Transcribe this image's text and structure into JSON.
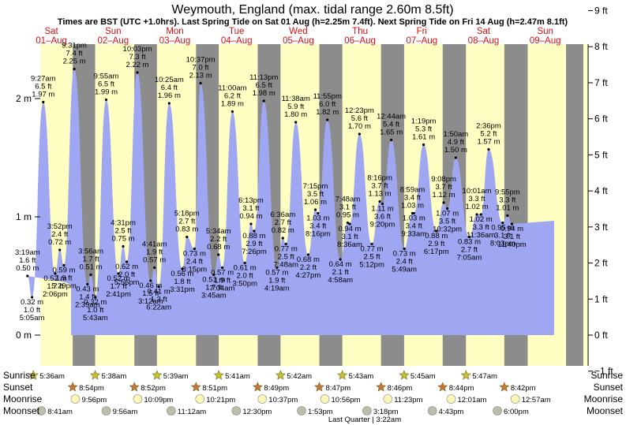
{
  "title": "Weymouth, England (max. tidal range 2.60m 8.5ft)",
  "subtitle": "Times are BST (UTC +1.0hrs). Last Spring Tide on Sat 01 Aug (h=2.25m 7.4ft). Next Spring Tide on Fri 14 Aug (h=2.47m 8.1ft)",
  "chart_data": {
    "type": "area",
    "title": "Weymouth, England (max. tidal range 2.60m 8.5ft)",
    "days": [
      {
        "dow": "Sat",
        "date": "01–Aug"
      },
      {
        "dow": "Sun",
        "date": "02–Aug"
      },
      {
        "dow": "Mon",
        "date": "03–Aug"
      },
      {
        "dow": "Tue",
        "date": "04–Aug"
      },
      {
        "dow": "Wed",
        "date": "05–Aug"
      },
      {
        "dow": "Thu",
        "date": "06–Aug"
      },
      {
        "dow": "Fri",
        "date": "07–Aug"
      },
      {
        "dow": "Sat",
        "date": "08–Aug"
      },
      {
        "dow": "Sun",
        "date": "09–Aug"
      }
    ],
    "ylim_m": [
      -0.3,
      2.8
    ],
    "ylim_ft": [
      -1,
      9
    ],
    "y_left_ticks": [
      {
        "v": 0,
        "label": "0 m"
      },
      {
        "v": 1,
        "label": "1 m"
      },
      {
        "v": 2,
        "label": "2 m"
      }
    ],
    "y_right_ticks": [
      {
        "v": -1,
        "label": "−1 ft"
      },
      {
        "v": 0,
        "label": "0 ft"
      },
      {
        "v": 1,
        "label": "1 ft"
      },
      {
        "v": 2,
        "label": "2 ft"
      },
      {
        "v": 3,
        "label": "3 ft"
      },
      {
        "v": 4,
        "label": "4 ft"
      },
      {
        "v": 5,
        "label": "5 ft"
      },
      {
        "v": 6,
        "label": "6 ft"
      },
      {
        "v": 7,
        "label": "7 ft"
      },
      {
        "v": 8,
        "label": "8 ft"
      },
      {
        "v": 9,
        "label": "9 ft"
      }
    ],
    "tides": [
      {
        "day": 0,
        "time": "3:19 am",
        "t": "3:19am",
        "m": 0.5,
        "ft": "1.6 ft",
        "mlabel": "0.50 m",
        "type": "high"
      },
      {
        "day": 0,
        "time": "5:05 am",
        "t": "5:05am",
        "m": 0.32,
        "ft": "1.0 ft",
        "mlabel": "0.32 m",
        "type": "low"
      },
      {
        "day": 0,
        "time": "9:27 am",
        "t": "9:27am",
        "m": 1.97,
        "ft": "6.5 ft",
        "mlabel": "1.97 m",
        "type": "high"
      },
      {
        "day": 0,
        "time": "2:06 pm",
        "t": "2:06pm",
        "m": 0.52,
        "ft": "1.7 ft",
        "mlabel": "0.52 m",
        "type": "low"
      },
      {
        "day": 0,
        "time": "3:52 pm",
        "t": "3:52pm",
        "m": 0.72,
        "ft": "2.4 ft",
        "mlabel": "0.72 m",
        "type": "high"
      },
      {
        "day": 0,
        "time": "5:29 pm",
        "t": "5:29pm",
        "m": 0.59,
        "ft": "1.9 ft",
        "mlabel": "0.59 m",
        "type": "low"
      },
      {
        "day": 0,
        "time": "9:31 pm",
        "t": "9:31pm",
        "m": 2.25,
        "ft": "7.4 ft",
        "mlabel": "2.25 m",
        "type": "high"
      },
      {
        "day": 1,
        "time": "2:39 am",
        "t": "2:39am",
        "m": 0.43,
        "ft": "1.4 ft",
        "mlabel": "0.43 m",
        "type": "low"
      },
      {
        "day": 1,
        "time": "3:56 am",
        "t": "3:56am",
        "m": 0.51,
        "ft": "1.7 ft",
        "mlabel": "0.51 m",
        "type": "high"
      },
      {
        "day": 1,
        "time": "5:43 am",
        "t": "5:43am",
        "m": 0.32,
        "ft": "1.0 ft",
        "mlabel": "0.32 m",
        "type": "low"
      },
      {
        "day": 1,
        "time": "9:55 am",
        "t": "9:55am",
        "m": 1.99,
        "ft": "6.5 ft",
        "mlabel": "1.99 m",
        "type": "high"
      },
      {
        "day": 1,
        "time": "2:41 pm",
        "t": "2:41pm",
        "m": 0.52,
        "ft": "1.7 ft",
        "mlabel": "0.52 m",
        "type": "low"
      },
      {
        "day": 1,
        "time": "4:31 pm",
        "t": "4:31pm",
        "m": 0.75,
        "ft": "2.5 ft",
        "mlabel": "0.75 m",
        "type": "high"
      },
      {
        "day": 1,
        "time": "5:56 pm",
        "t": "5:56pm",
        "m": 0.62,
        "ft": "2.0 ft",
        "mlabel": "0.62 m",
        "type": "low"
      },
      {
        "day": 1,
        "time": "10:03 pm",
        "t": "10:03pm",
        "m": 2.22,
        "ft": "7.3 ft",
        "mlabel": "2.22 m",
        "type": "high"
      },
      {
        "day": 2,
        "time": "3:12 am",
        "t": "3:12am",
        "m": 0.46,
        "ft": "1.5 ft",
        "mlabel": "0.46 m",
        "type": "low"
      },
      {
        "day": 2,
        "time": "4:41 am",
        "t": "4:41am",
        "m": 0.57,
        "ft": "1.9 ft",
        "mlabel": "0.57 m",
        "type": "high"
      },
      {
        "day": 2,
        "time": "6:22 am",
        "t": "6:22am",
        "m": 0.41,
        "ft": "1.3 ft",
        "mlabel": "0.41 m",
        "type": "low"
      },
      {
        "day": 2,
        "time": "10:25 am",
        "t": "10:25am",
        "m": 1.96,
        "ft": "6.4 ft",
        "mlabel": "1.96 m",
        "type": "high"
      },
      {
        "day": 2,
        "time": "3:31 pm",
        "t": "3:31pm",
        "m": 0.56,
        "ft": "1.8 ft",
        "mlabel": "0.56 m",
        "type": "low"
      },
      {
        "day": 2,
        "time": "5:18 pm",
        "t": "5:18pm",
        "m": 0.83,
        "ft": "2.7 ft",
        "mlabel": "0.83 m",
        "type": "high"
      },
      {
        "day": 2,
        "time": "8:15 pm",
        "t": "8:15pm",
        "m": 0.73,
        "ft": "2.4 ft",
        "mlabel": "0.73 m",
        "type": "low"
      },
      {
        "day": 2,
        "time": "10:37 pm",
        "t": "10:37pm",
        "m": 2.13,
        "ft": "7.0 ft",
        "mlabel": "2.13 m",
        "type": "high"
      },
      {
        "day": 3,
        "time": "3:45 am",
        "t": "3:45am",
        "m": 0.51,
        "ft": "1.7 ft",
        "mlabel": "0.51 m",
        "type": "low"
      },
      {
        "day": 3,
        "time": "5:34 am",
        "t": "5:34am",
        "m": 0.68,
        "ft": "2.2 ft",
        "mlabel": "0.68 m",
        "type": "high"
      },
      {
        "day": 3,
        "time": "7:04 am",
        "t": "7:04am",
        "m": 0.57,
        "ft": "1.9 ft",
        "mlabel": "0.57 m",
        "type": "low"
      },
      {
        "day": 3,
        "time": "11:00 am",
        "t": "11:00am",
        "m": 1.89,
        "ft": "6.2 ft",
        "mlabel": "1.89 m",
        "type": "high"
      },
      {
        "day": 3,
        "time": "3:50 pm",
        "t": "3:50pm",
        "m": 0.61,
        "ft": "2.0 ft",
        "mlabel": "0.61 m",
        "type": "low"
      },
      {
        "day": 3,
        "time": "6:13 pm",
        "t": "6:13pm",
        "m": 0.94,
        "ft": "3.1 ft",
        "mlabel": "0.94 m",
        "type": "high"
      },
      {
        "day": 3,
        "time": "7:26 pm",
        "t": "7:26pm",
        "m": 0.88,
        "ft": "2.9 ft",
        "mlabel": "0.88 m",
        "type": "low"
      },
      {
        "day": 3,
        "time": "11:13 pm",
        "t": "11:13pm",
        "m": 1.98,
        "ft": "6.5 ft",
        "mlabel": "1.98 m",
        "type": "high"
      },
      {
        "day": 4,
        "time": "4:19 am",
        "t": "4:19am",
        "m": 0.57,
        "ft": "1.9 ft",
        "mlabel": "0.57 m",
        "type": "low"
      },
      {
        "day": 4,
        "time": "6:36 am",
        "t": "6:36am",
        "m": 0.82,
        "ft": "2.7 ft",
        "mlabel": "0.82 m",
        "type": "high"
      },
      {
        "day": 4,
        "time": "7:48 am",
        "t": "7:48am",
        "m": 0.77,
        "ft": "2.5 ft",
        "mlabel": "0.77 m",
        "type": "low"
      },
      {
        "day": 4,
        "time": "11:38 am",
        "t": "11:38am",
        "m": 1.8,
        "ft": "5.9 ft",
        "mlabel": "1.80 m",
        "type": "high"
      },
      {
        "day": 4,
        "time": "4:27 pm",
        "t": "4:27pm",
        "m": 0.68,
        "ft": "2.2 ft",
        "mlabel": "0.68 m",
        "type": "low"
      },
      {
        "day": 4,
        "time": "7:15 pm",
        "t": "7:15pm",
        "m": 1.06,
        "ft": "3.5 ft",
        "mlabel": "1.06 m",
        "type": "high"
      },
      {
        "day": 4,
        "time": "8:16 pm",
        "t": "8:16pm",
        "m": 1.03,
        "ft": "3.4 ft",
        "mlabel": "1.03 m",
        "type": "low"
      },
      {
        "day": 4,
        "time": "11:55 pm",
        "t": "11:55pm",
        "m": 1.82,
        "ft": "6.0 ft",
        "mlabel": "1.82 m",
        "type": "high"
      },
      {
        "day": 5,
        "time": "4:58 am",
        "t": "4:58am",
        "m": 0.64,
        "ft": "2.1 ft",
        "mlabel": "0.64 m",
        "type": "low"
      },
      {
        "day": 5,
        "time": "7:48 am",
        "t": "7:48am",
        "m": 0.95,
        "ft": "3.1 ft",
        "mlabel": "0.95 m",
        "type": "high"
      },
      {
        "day": 5,
        "time": "8:36 am",
        "t": "8:36am",
        "m": 0.94,
        "ft": "3.1 ft",
        "mlabel": "0.94 m",
        "type": "low"
      },
      {
        "day": 5,
        "time": "12:23 pm",
        "t": "12:23pm",
        "m": 1.7,
        "ft": "5.6 ft",
        "mlabel": "1.70 m",
        "type": "high"
      },
      {
        "day": 5,
        "time": "5:12 pm",
        "t": "5:12pm",
        "m": 0.77,
        "ft": "2.5 ft",
        "mlabel": "0.77 m",
        "type": "low"
      },
      {
        "day": 5,
        "time": "8:16 pm",
        "t": "8:16pm",
        "m": 1.13,
        "ft": "3.7 ft",
        "mlabel": "1.13 m",
        "type": "high"
      },
      {
        "day": 5,
        "time": "9:20 pm",
        "t": "9:20pm",
        "m": 1.11,
        "ft": "3.6 ft",
        "mlabel": "1.11 m",
        "type": "low"
      },
      {
        "day": 6,
        "time": "12:44 am",
        "t": "12:44am",
        "m": 1.65,
        "ft": "5.4 ft",
        "mlabel": "1.65 m",
        "type": "high"
      },
      {
        "day": 6,
        "time": "5:49 am",
        "t": "5:49am",
        "m": 0.73,
        "ft": "2.4 ft",
        "mlabel": "0.73 m",
        "type": "low"
      },
      {
        "day": 6,
        "time": "8:59 am",
        "t": "8:59am",
        "m": 1.03,
        "ft": "3.4 ft",
        "mlabel": "1.03 m",
        "type": "high"
      },
      {
        "day": 6,
        "time": "9:33 am",
        "t": "9:33am",
        "m": 1.03,
        "ft": "3.4 ft",
        "mlabel": "1.03 m",
        "type": "low"
      },
      {
        "day": 6,
        "time": "1:19 pm",
        "t": "1:19pm",
        "m": 1.61,
        "ft": "5.3 ft",
        "mlabel": "1.61 m",
        "type": "high"
      },
      {
        "day": 6,
        "time": "6:17 pm",
        "t": "6:17pm",
        "m": 0.88,
        "ft": "2.9 ft",
        "mlabel": "0.88 m",
        "type": "low"
      },
      {
        "day": 6,
        "time": "9:08 pm",
        "t": "9:08pm",
        "m": 1.12,
        "ft": "3.7 ft",
        "mlabel": "1.12 m",
        "type": "high"
      },
      {
        "day": 6,
        "time": "10:32 pm",
        "t": "10:32pm",
        "m": 1.07,
        "ft": "3.5 ft",
        "mlabel": "1.07 m",
        "type": "low"
      },
      {
        "day": 7,
        "time": "1:50 am",
        "t": "1:50am",
        "m": 1.5,
        "ft": "4.9 ft",
        "mlabel": "1.50 m",
        "type": "high"
      },
      {
        "day": 7,
        "time": "7:05 am",
        "t": "7:05am",
        "m": 0.83,
        "ft": "2.7 ft",
        "mlabel": "0.83 m",
        "type": "low"
      },
      {
        "day": 7,
        "time": "10:01 am",
        "t": "10:01am",
        "m": 1.02,
        "ft": "3.3 ft",
        "mlabel": "1.02 m",
        "type": "high"
      },
      {
        "day": 7,
        "time": "11:36 am",
        "t": "11:36am",
        "m": 1.02,
        "ft": "3.3 ft",
        "mlabel": "1.02 m",
        "type": "low"
      },
      {
        "day": 7,
        "time": "2:36 pm",
        "t": "2:36pm",
        "m": 1.57,
        "ft": "5.2 ft",
        "mlabel": "1.57 m",
        "type": "high"
      },
      {
        "day": 7,
        "time": "8:03 pm",
        "t": "8:03pm",
        "m": 0.95,
        "ft": "3.1 ft",
        "mlabel": "0.95 m",
        "type": "low"
      },
      {
        "day": 7,
        "time": "9:55 pm",
        "t": "9:55pm",
        "m": 1.01,
        "ft": "3.3 ft",
        "mlabel": "1.01 m",
        "type": "high"
      },
      {
        "day": 7,
        "time": "11:40 pm",
        "t": "11:40pm",
        "m": 0.94,
        "ft": "3.1 ft",
        "mlabel": "0.94 m",
        "type": "low"
      }
    ],
    "sunrise": [
      {
        "day": 0,
        "time": "5:36am"
      },
      {
        "day": 1,
        "time": "5:38am"
      },
      {
        "day": 2,
        "time": "5:39am"
      },
      {
        "day": 3,
        "time": "5:41am"
      },
      {
        "day": 4,
        "time": "5:42am"
      },
      {
        "day": 5,
        "time": "5:43am"
      },
      {
        "day": 6,
        "time": "5:45am"
      },
      {
        "day": 7,
        "time": "5:47am"
      }
    ],
    "sunset": [
      {
        "day": 0,
        "time": "8:54pm"
      },
      {
        "day": 1,
        "time": "8:52pm"
      },
      {
        "day": 2,
        "time": "8:51pm"
      },
      {
        "day": 3,
        "time": "8:49pm"
      },
      {
        "day": 4,
        "time": "8:47pm"
      },
      {
        "day": 5,
        "time": "8:46pm"
      },
      {
        "day": 6,
        "time": "8:44pm"
      },
      {
        "day": 7,
        "time": "8:42pm"
      }
    ],
    "moonrise": [
      {
        "day": 0,
        "time": "9:56pm"
      },
      {
        "day": 1,
        "time": "10:09pm"
      },
      {
        "day": 2,
        "time": "10:21pm"
      },
      {
        "day": 3,
        "time": "10:37pm"
      },
      {
        "day": 4,
        "time": "10:56pm"
      },
      {
        "day": 5,
        "time": "11:23pm"
      },
      {
        "day": 7,
        "time": "12:01am"
      },
      {
        "day": 8,
        "time": "12:57am"
      }
    ],
    "moonset": [
      {
        "day": 0,
        "time": "8:41am"
      },
      {
        "day": 1,
        "time": "9:56am"
      },
      {
        "day": 2,
        "time": "11:12am"
      },
      {
        "day": 3,
        "time": "12:30pm"
      },
      {
        "day": 4,
        "time": "1:53pm"
      },
      {
        "day": 5,
        "time": "3:18pm"
      },
      {
        "day": 6,
        "time": "4:43pm"
      },
      {
        "day": 7,
        "time": "6:00pm"
      }
    ],
    "row_labels": {
      "sunrise": "Sunrise",
      "sunset": "Sunset",
      "moonrise": "Moonrise",
      "moonset": "Moonset"
    },
    "moon_phase": "Last Quarter | 3:22am",
    "colors": {
      "night": "#8c8c8c",
      "day": "#ffffc4",
      "tide_fill": "#9fa6f2",
      "day_label": "#d81010",
      "sun_star": "#c9c02d",
      "sunset_star": "#c8753a",
      "moonrise_circle": "#fff7b8",
      "moonset_circle": "#bdbdaa"
    }
  }
}
